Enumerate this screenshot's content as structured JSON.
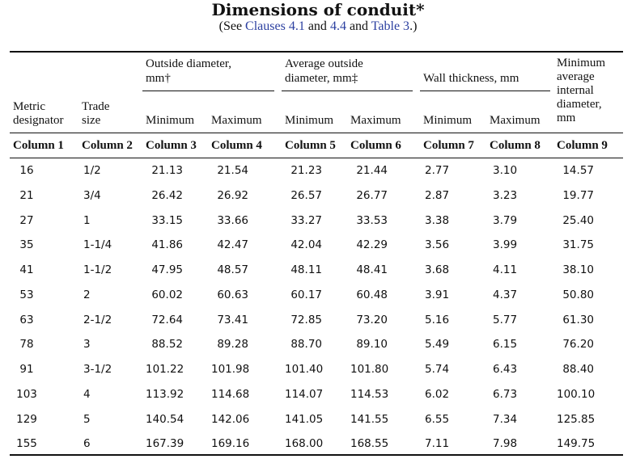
{
  "title": "Dimensions of conduit*",
  "subtitle": {
    "open": "(See ",
    "ref1": "Clauses 4.1",
    "and1": " and ",
    "ref2": "4.4",
    "and2": " and ",
    "ref3": "Table 3",
    "close": ".)"
  },
  "headers": {
    "outside_diameter": [
      "Outside diameter,",
      "mm†"
    ],
    "average_outside_diameter": [
      "Average outside",
      "diameter, mm‡"
    ],
    "wall_thickness": "Wall thickness, mm",
    "min_avg_internal": [
      "Minimum",
      "average",
      "internal",
      "diameter,",
      "mm"
    ],
    "metric_designator": [
      "Metric",
      "designator"
    ],
    "trade_size": [
      "Trade",
      "size"
    ],
    "minimum": "Minimum",
    "maximum": "Maximum"
  },
  "column_labels": [
    "Column 1",
    "Column 2",
    "Column 3",
    "Column 4",
    "Column 5",
    "Column 6",
    "Column 7",
    "Column 8",
    "Column 9"
  ],
  "rows": [
    [
      "16",
      "1/2",
      "21.13",
      "21.54",
      "21.23",
      "21.44",
      "2.77",
      "3.10",
      "14.57"
    ],
    [
      "21",
      "3/4",
      "26.42",
      "26.92",
      "26.57",
      "26.77",
      "2.87",
      "3.23",
      "19.77"
    ],
    [
      "27",
      "1",
      "33.15",
      "33.66",
      "33.27",
      "33.53",
      "3.38",
      "3.79",
      "25.40"
    ],
    [
      "35",
      "1-1/4",
      "41.86",
      "42.47",
      "42.04",
      "42.29",
      "3.56",
      "3.99",
      "31.75"
    ],
    [
      "41",
      "1-1/2",
      "47.95",
      "48.57",
      "48.11",
      "48.41",
      "3.68",
      "4.11",
      "38.10"
    ],
    [
      "53",
      "2",
      "60.02",
      "60.63",
      "60.17",
      "60.48",
      "3.91",
      "4.37",
      "50.80"
    ],
    [
      "63",
      "2-1/2",
      "72.64",
      "73.41",
      "72.85",
      "73.20",
      "5.16",
      "5.77",
      "61.30"
    ],
    [
      "78",
      "3",
      "88.52",
      "89.28",
      "88.70",
      "89.10",
      "5.49",
      "6.15",
      "76.20"
    ],
    [
      "91",
      "3-1/2",
      "101.22",
      "101.98",
      "101.40",
      "101.80",
      "5.74",
      "6.43",
      "88.40"
    ],
    [
      "103",
      "4",
      "113.92",
      "114.68",
      "114.07",
      "114.53",
      "6.02",
      "6.73",
      "100.10"
    ],
    [
      "129",
      "5",
      "140.54",
      "142.06",
      "141.05",
      "141.55",
      "6.55",
      "7.34",
      "125.85"
    ],
    [
      "155",
      "6",
      "167.39",
      "169.16",
      "168.00",
      "168.55",
      "7.11",
      "7.98",
      "149.75"
    ]
  ]
}
